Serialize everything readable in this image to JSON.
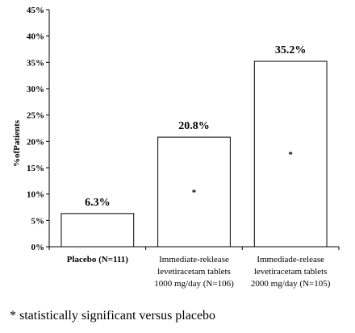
{
  "chart_data": {
    "type": "bar",
    "ylabel": "%ofPatients",
    "ylim": [
      0,
      45
    ],
    "yticks": [
      "0%",
      "5%",
      "10%",
      "15%",
      "20%",
      "25%",
      "30%",
      "35%",
      "40%",
      "45%"
    ],
    "grid": false,
    "categories": [
      [
        "Placebo (N=111)"
      ],
      [
        "Immediate-reklease",
        "levetiracetam tablets",
        "1000 mg/day (N=106)"
      ],
      [
        "Immediade-release",
        "levetiracetam tablets",
        "2000 mg/day (N=105)"
      ]
    ],
    "values": [
      6.3,
      20.8,
      35.2
    ],
    "data_labels": [
      "6.3%",
      "20.8%",
      "35.2%"
    ],
    "significance_marker": [
      "",
      "*",
      "*"
    ],
    "bar_fill": "#ffffff",
    "bar_stroke": "#000000"
  },
  "footnote": "* statistically significant versus placebo"
}
